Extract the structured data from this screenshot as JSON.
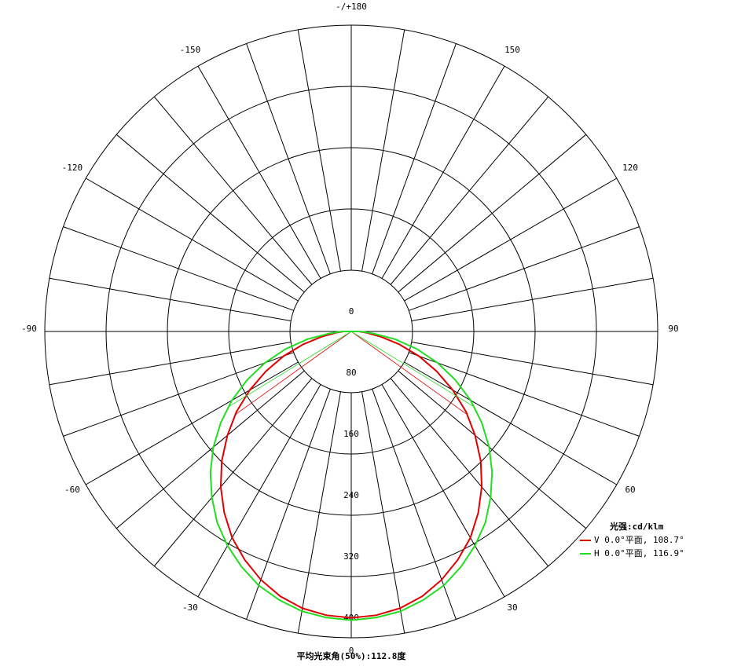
{
  "chart_data": {
    "type": "polar",
    "unit_label": "光强:cd/klm",
    "footer": "平均光束角(50%):112.8度",
    "rlim": [
      0,
      400
    ],
    "rticks": [
      0,
      80,
      160,
      240,
      320,
      400
    ],
    "thetaticks": [
      {
        "value": 180,
        "label": "-/+180"
      },
      -150,
      -120,
      -90,
      -60,
      -30,
      0,
      30,
      60,
      90,
      120,
      150
    ],
    "x": [
      -90,
      -85,
      -80,
      -75,
      -70,
      -65,
      -60,
      -55,
      -50,
      -45,
      -40,
      -35,
      -30,
      -25,
      -20,
      -15,
      -10,
      -5,
      0,
      5,
      10,
      15,
      20,
      25,
      30,
      35,
      40,
      45,
      50,
      55,
      60,
      65,
      70,
      75,
      80,
      85,
      90
    ],
    "series": [
      {
        "name": "V 0.0°平面, 108.7°",
        "color": "#e00000",
        "beam_angle": 108.7,
        "values": [
          10,
          20,
          39,
          65,
          94,
          123,
          153,
          183,
          211,
          239,
          265,
          289,
          311,
          329,
          345,
          358,
          367,
          372,
          374,
          372,
          367,
          358,
          345,
          329,
          311,
          289,
          265,
          239,
          211,
          183,
          153,
          123,
          94,
          65,
          39,
          20,
          10
        ]
      },
      {
        "name": "H 0.0°平面, 116.9°",
        "color": "#22dd22",
        "beam_angle": 116.9,
        "values": [
          12,
          28,
          58,
          89,
          120,
          150,
          180,
          208,
          235,
          260,
          283,
          305,
          323,
          339,
          353,
          363,
          371,
          375,
          377,
          375,
          371,
          363,
          353,
          339,
          323,
          305,
          283,
          260,
          235,
          208,
          180,
          150,
          120,
          89,
          58,
          28,
          12
        ]
      }
    ]
  }
}
